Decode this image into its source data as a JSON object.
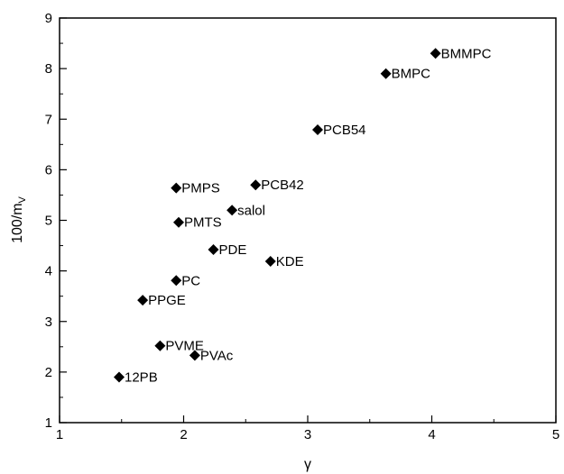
{
  "chart_data": {
    "type": "scatter",
    "xlabel": "γ",
    "ylabel": "100/m",
    "ylabel_subscript": "V",
    "xlim": [
      1,
      5
    ],
    "ylim": [
      1,
      9
    ],
    "xticks": [
      "1",
      "2",
      "3",
      "4",
      "5"
    ],
    "yticks": [
      "1",
      "2",
      "3",
      "4",
      "5",
      "6",
      "7",
      "8",
      "9"
    ],
    "grid": false,
    "marker_color": "#000000",
    "points": [
      {
        "label": "12PB",
        "x": 1.48,
        "y": 1.9
      },
      {
        "label": "PVME",
        "x": 1.81,
        "y": 2.52
      },
      {
        "label": "PVAc",
        "x": 2.09,
        "y": 2.33
      },
      {
        "label": "PPGE",
        "x": 1.67,
        "y": 3.42
      },
      {
        "label": "PC",
        "x": 1.94,
        "y": 3.81
      },
      {
        "label": "PDE",
        "x": 2.24,
        "y": 4.42
      },
      {
        "label": "KDE",
        "x": 2.7,
        "y": 4.19
      },
      {
        "label": "PMTS",
        "x": 1.96,
        "y": 4.96
      },
      {
        "label": "salol",
        "x": 2.39,
        "y": 5.2
      },
      {
        "label": "PMPS",
        "x": 1.94,
        "y": 5.64
      },
      {
        "label": "PCB42",
        "x": 2.58,
        "y": 5.7
      },
      {
        "label": "PCB54",
        "x": 3.08,
        "y": 6.79
      },
      {
        "label": "BMPC",
        "x": 3.63,
        "y": 7.9
      },
      {
        "label": "BMMPC",
        "x": 4.03,
        "y": 8.3
      }
    ]
  }
}
